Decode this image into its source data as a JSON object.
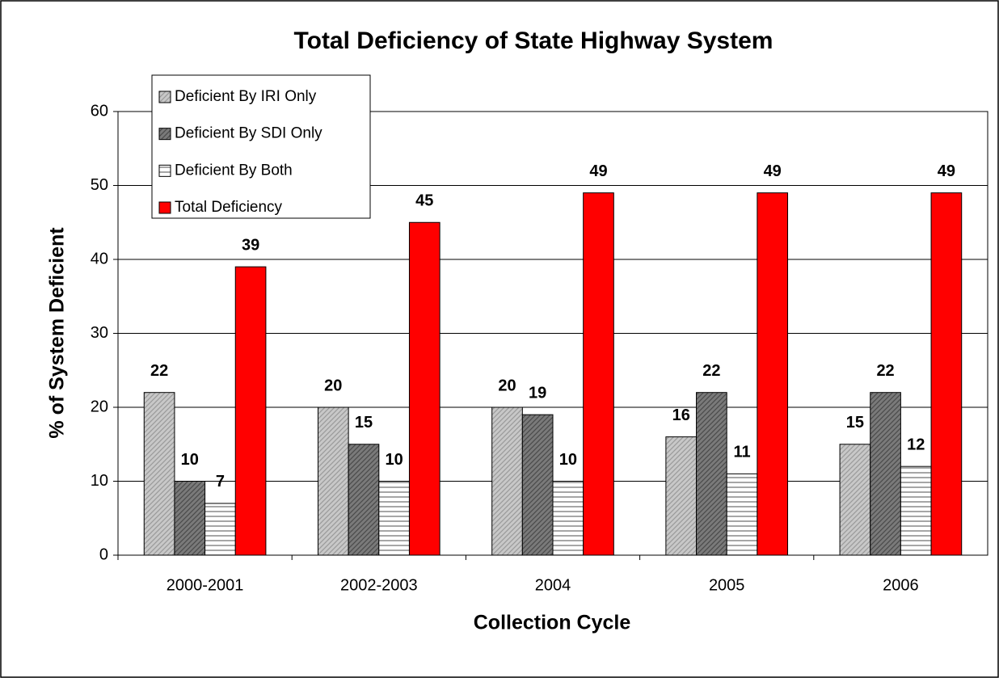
{
  "chart_data": {
    "type": "bar",
    "title": "Total Deficiency of State Highway System",
    "x_label": "Collection Cycle",
    "y_label": "% of System Deficient",
    "categories": [
      "2000-2001",
      "2002-2003",
      "2004",
      "2005",
      "2006"
    ],
    "series": [
      {
        "name": "Deficient By IRI Only",
        "color": "#c8c8c8",
        "hatch": "diagonal",
        "values": [
          22,
          20,
          20,
          16,
          15
        ]
      },
      {
        "name": "Deficient By SDI Only",
        "color": "#7a7a7a",
        "hatch": "diagonal",
        "values": [
          10,
          15,
          19,
          22,
          22
        ]
      },
      {
        "name": "Deficient By Both",
        "color": "#ffffff",
        "hatch": "horizontal",
        "values": [
          7,
          10,
          10,
          11,
          12
        ]
      },
      {
        "name": "Total Deficiency",
        "color": "#ff0000",
        "values": [
          39,
          45,
          49,
          49,
          49
        ]
      }
    ],
    "ylim": [
      0,
      60
    ],
    "yticks": [
      0,
      10,
      20,
      30,
      40,
      50,
      60
    ],
    "grid": true,
    "legend": "upper left"
  }
}
